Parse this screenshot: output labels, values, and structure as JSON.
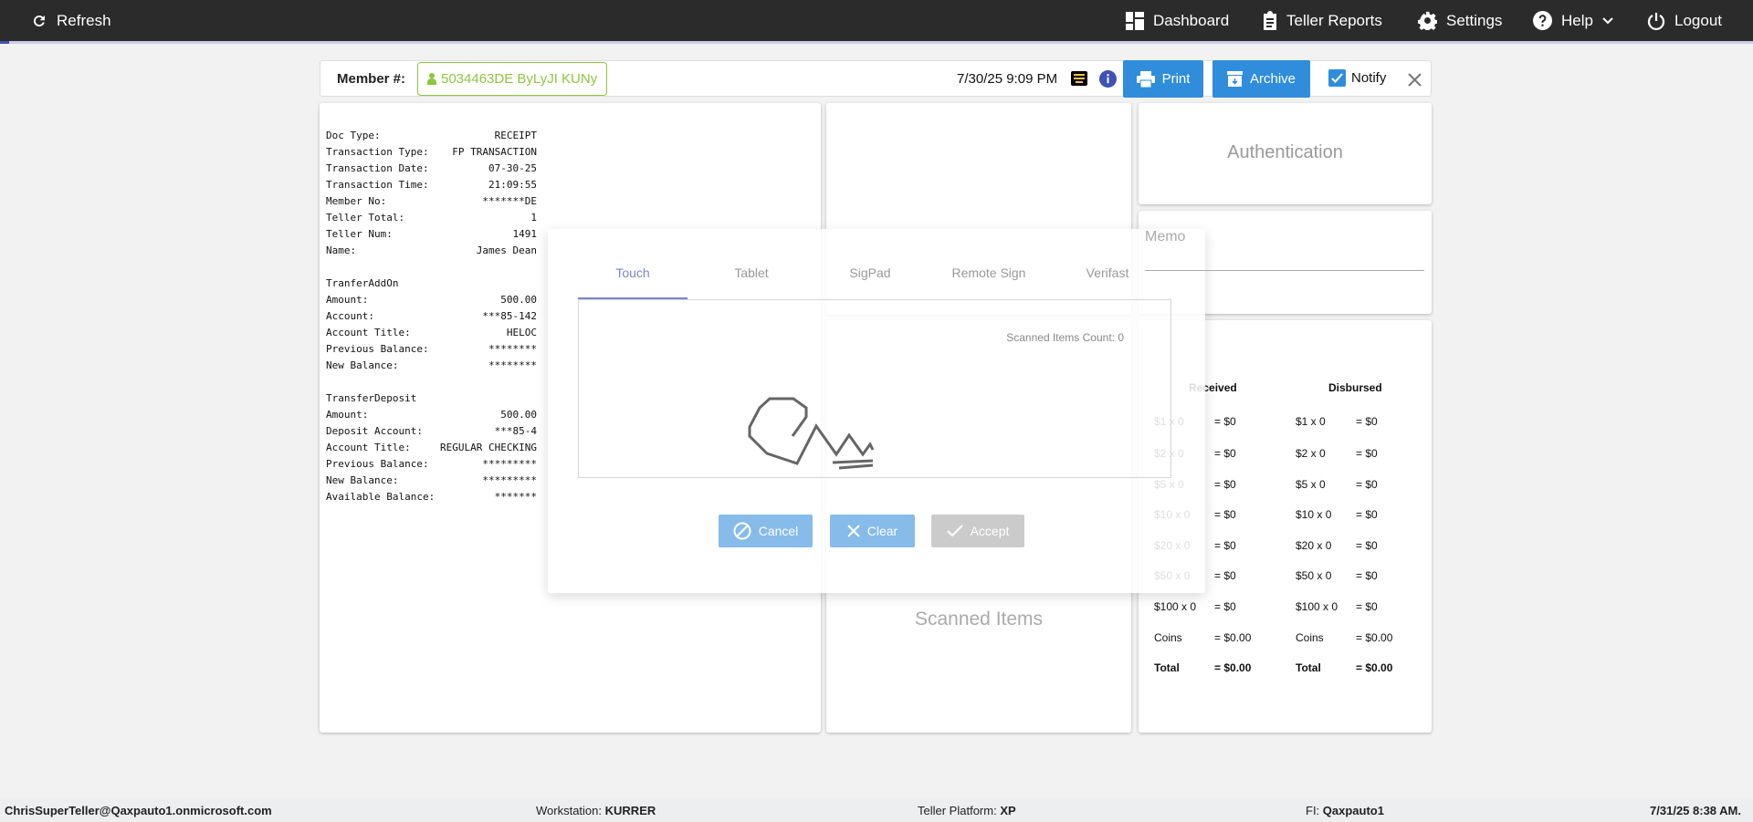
{
  "topbar": {
    "refresh": "Refresh",
    "nav": [
      {
        "label": "Dashboard",
        "icon": "dashboard-icon"
      },
      {
        "label": "Teller Reports",
        "icon": "clipboard-icon"
      },
      {
        "label": "Settings",
        "icon": "gear-icon"
      },
      {
        "label": "Help",
        "icon": "help-icon"
      },
      {
        "label": "Logout",
        "icon": "power-icon"
      }
    ]
  },
  "header": {
    "member_label": "Member #:",
    "member_value": "5034463DE ByLyJI KUNy",
    "datetime": "7/30/25 9:09 PM",
    "print": "Print",
    "archive": "Archive",
    "notify": "Notify",
    "notify_checked": true
  },
  "receipt": {
    "section1": [
      [
        "Doc Type:",
        "RECEIPT"
      ],
      [
        "Transaction Type:",
        "FP TRANSACTION"
      ],
      [
        "Transaction Date:",
        "07-30-25"
      ],
      [
        "Transaction Time:",
        "21:09:55"
      ],
      [
        "Member No:",
        "*******DE"
      ],
      [
        "Teller Total:",
        "1"
      ],
      [
        "Teller Num:",
        "1491"
      ],
      [
        "Name:",
        "James Dean"
      ]
    ],
    "section2_title": "TranferAddOn",
    "section2": [
      [
        "Amount:",
        "500.00"
      ],
      [
        "Account:",
        "***85-142"
      ],
      [
        "Account Title:",
        "HELOC"
      ],
      [
        "Previous Balance:",
        "********"
      ],
      [
        "New Balance:",
        "********"
      ]
    ],
    "section3_title": "TransferDeposit",
    "section3": [
      [
        "Amount:",
        "500.00"
      ],
      [
        "Deposit Account:",
        "***85-4"
      ],
      [
        "Account Title:",
        "REGULAR CHECKING"
      ],
      [
        "Previous Balance:",
        "*********"
      ],
      [
        "New Balance:",
        "*********"
      ],
      [
        "Available Balance:",
        "*******"
      ]
    ]
  },
  "scanned": {
    "count_label": "Scanned Items Count: 0",
    "title": "Scanned Items"
  },
  "auth": {
    "title": "Authentication"
  },
  "memo": {
    "placeholder": "Memo"
  },
  "cash": {
    "received": "Received",
    "disbursed": "Disbursed",
    "rows": [
      [
        "$1 x 0",
        "= $0",
        "$1 x 0",
        "= $0"
      ],
      [
        "$2 x 0",
        "= $0",
        "$2 x 0",
        "= $0"
      ],
      [
        "$5 x 0",
        "= $0",
        "$5 x 0",
        "= $0"
      ],
      [
        "$10 x 0",
        "= $0",
        "$10 x 0",
        "= $0"
      ],
      [
        "$20 x 0",
        "= $0",
        "$20 x 0",
        "= $0"
      ],
      [
        "$50 x 0",
        "= $0",
        "$50 x 0",
        "= $0"
      ],
      [
        "$100 x 0",
        "= $0",
        "$100 x 0",
        "= $0"
      ],
      [
        "Coins",
        "= $0.00",
        "Coins",
        "= $0.00"
      ],
      [
        "Total",
        "= $0.00",
        "Total",
        "= $0.00"
      ]
    ]
  },
  "signature_modal": {
    "tabs": [
      "Touch",
      "Tablet",
      "SigPad",
      "Remote Sign",
      "Verifast"
    ],
    "active_tab": "Touch",
    "cancel": "Cancel",
    "clear": "Clear",
    "accept": "Accept"
  },
  "footer": {
    "user": "ChrisSuperTeller@Qaxpauto1.onmicrosoft.com",
    "workstation_label": "Workstation:",
    "workstation": "KURRER",
    "platform_label": "Teller Platform:",
    "platform": "XP",
    "fi_label": "FI:",
    "fi": "Qaxpauto1",
    "datetime": "7/31/25 8:38 AM."
  },
  "colors": {
    "topbar": "#2b2b2b",
    "primary": "#2f8ddc",
    "member_green": "#8dc63f",
    "tab_active": "#7986cb",
    "info": "#3f51b5"
  }
}
